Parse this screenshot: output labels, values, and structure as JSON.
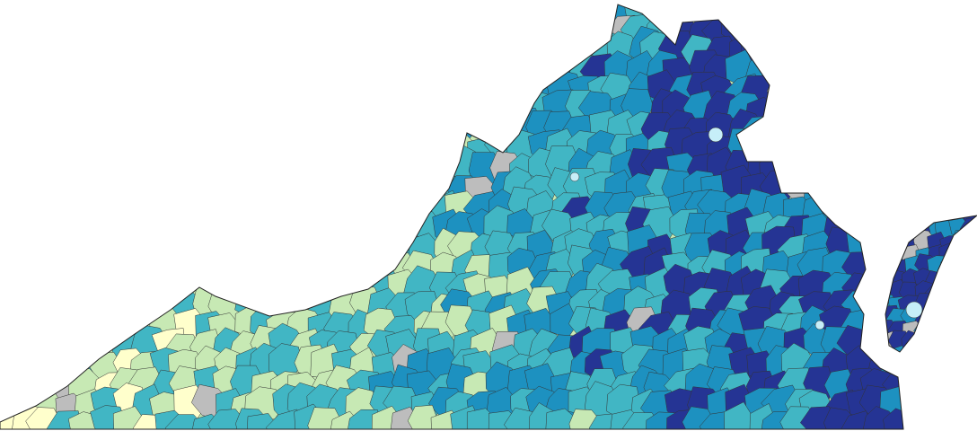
{
  "map": {
    "palette": {
      "class_1": "#ffffcc",
      "class_2": "#c7e9b4",
      "class_3": "#41b6c4",
      "class_4": "#1d91c0",
      "class_5": "#253494",
      "no_data": "#bdbdbd",
      "water_light": "#c6eef8"
    },
    "boundary_color": "#333333",
    "background": "#ffffff"
  }
}
